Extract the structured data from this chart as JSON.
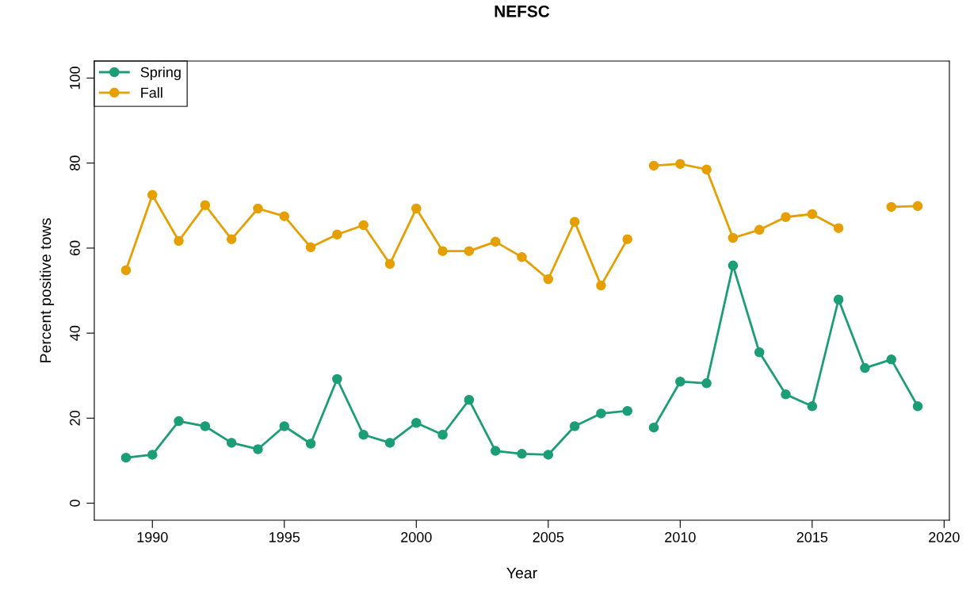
{
  "chart_data": {
    "type": "line",
    "title": "NEFSC",
    "xlabel": "Year",
    "ylabel": "Percent positive tows",
    "x": [
      1989,
      1990,
      1991,
      1992,
      1993,
      1994,
      1995,
      1996,
      1997,
      1998,
      1999,
      2000,
      2001,
      2002,
      2003,
      2004,
      2005,
      2006,
      2007,
      2008,
      2008.5,
      2009,
      2010,
      2011,
      2012,
      2013,
      2014,
      2015,
      2016,
      2017,
      2018,
      2019
    ],
    "series": [
      {
        "name": "Spring",
        "color": "#1b9e77",
        "values": [
          10.7,
          11.4,
          19.3,
          18.1,
          14.2,
          12.7,
          18.1,
          14.0,
          29.2,
          16.1,
          14.2,
          18.9,
          16.1,
          24.3,
          12.3,
          11.6,
          11.4,
          18.1,
          21.1,
          21.7,
          null,
          17.8,
          28.6,
          28.2,
          55.9,
          35.5,
          25.6,
          22.8,
          47.9,
          31.8,
          33.8,
          22.8
        ]
      },
      {
        "name": "Fall",
        "color": "#e69f00",
        "values": [
          54.8,
          72.5,
          61.7,
          70.1,
          62.1,
          69.3,
          67.5,
          60.2,
          63.2,
          65.4,
          56.3,
          69.3,
          59.3,
          59.3,
          61.5,
          57.9,
          52.7,
          66.2,
          51.2,
          62.1,
          null,
          79.4,
          79.8,
          78.5,
          62.4,
          64.3,
          67.3,
          68.0,
          64.7,
          null,
          69.7,
          69.9
        ]
      }
    ],
    "xlim": [
      1987.8,
      2020.2
    ],
    "xticks": [
      1990,
      1995,
      2000,
      2005,
      2010,
      2015,
      2020
    ],
    "ylim": [
      -4,
      104
    ],
    "yticks": [
      0,
      20,
      40,
      60,
      80,
      100
    ],
    "grid": false,
    "legend": "top left",
    "marker": "circle",
    "line_style": "solid"
  }
}
